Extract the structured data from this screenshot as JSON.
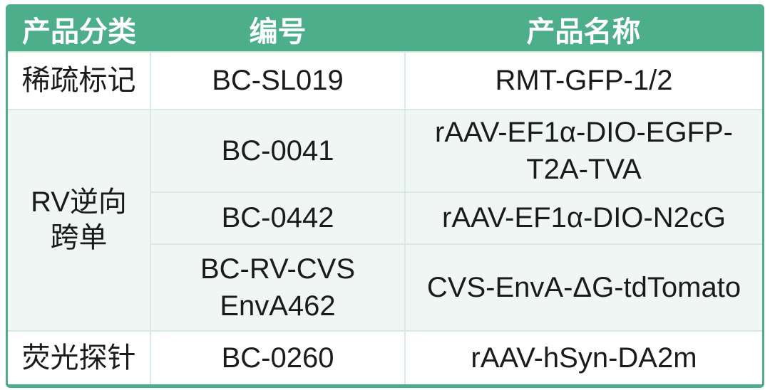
{
  "table": {
    "columns": [
      "产品分类",
      "编号",
      "产品名称"
    ],
    "rows": [
      {
        "category": "稀疏标记",
        "code": "BC-SL019",
        "name": "RMT-GFP-1/2"
      },
      {
        "category": "RV逆向跨单",
        "code": "BC-0041",
        "name": "rAAV-EF1α-DIO-EGFP-T2A-TVA"
      },
      {
        "code": "BC-0442",
        "name": "rAAV-EF1α-DIO-N2cG"
      },
      {
        "code": "BC-RV-CVS EnvA462",
        "name": "CVS-EnvA-ΔG-tdTomato"
      },
      {
        "category": "荧光探针",
        "code": "BC-0260",
        "name": "rAAV-hSyn-DA2m"
      }
    ],
    "merged_group": {
      "category": "RV逆向跨单",
      "row_span": 3
    },
    "colors": {
      "header_bg": "#4cae8b",
      "header_text": "#ffffff",
      "group_band_bg": "#f0f6f3",
      "row_bg": "#ffffff",
      "grid_line": "#d9ebe1",
      "outer_border": "#4cae8b",
      "body_text": "#1b1b1b"
    }
  }
}
